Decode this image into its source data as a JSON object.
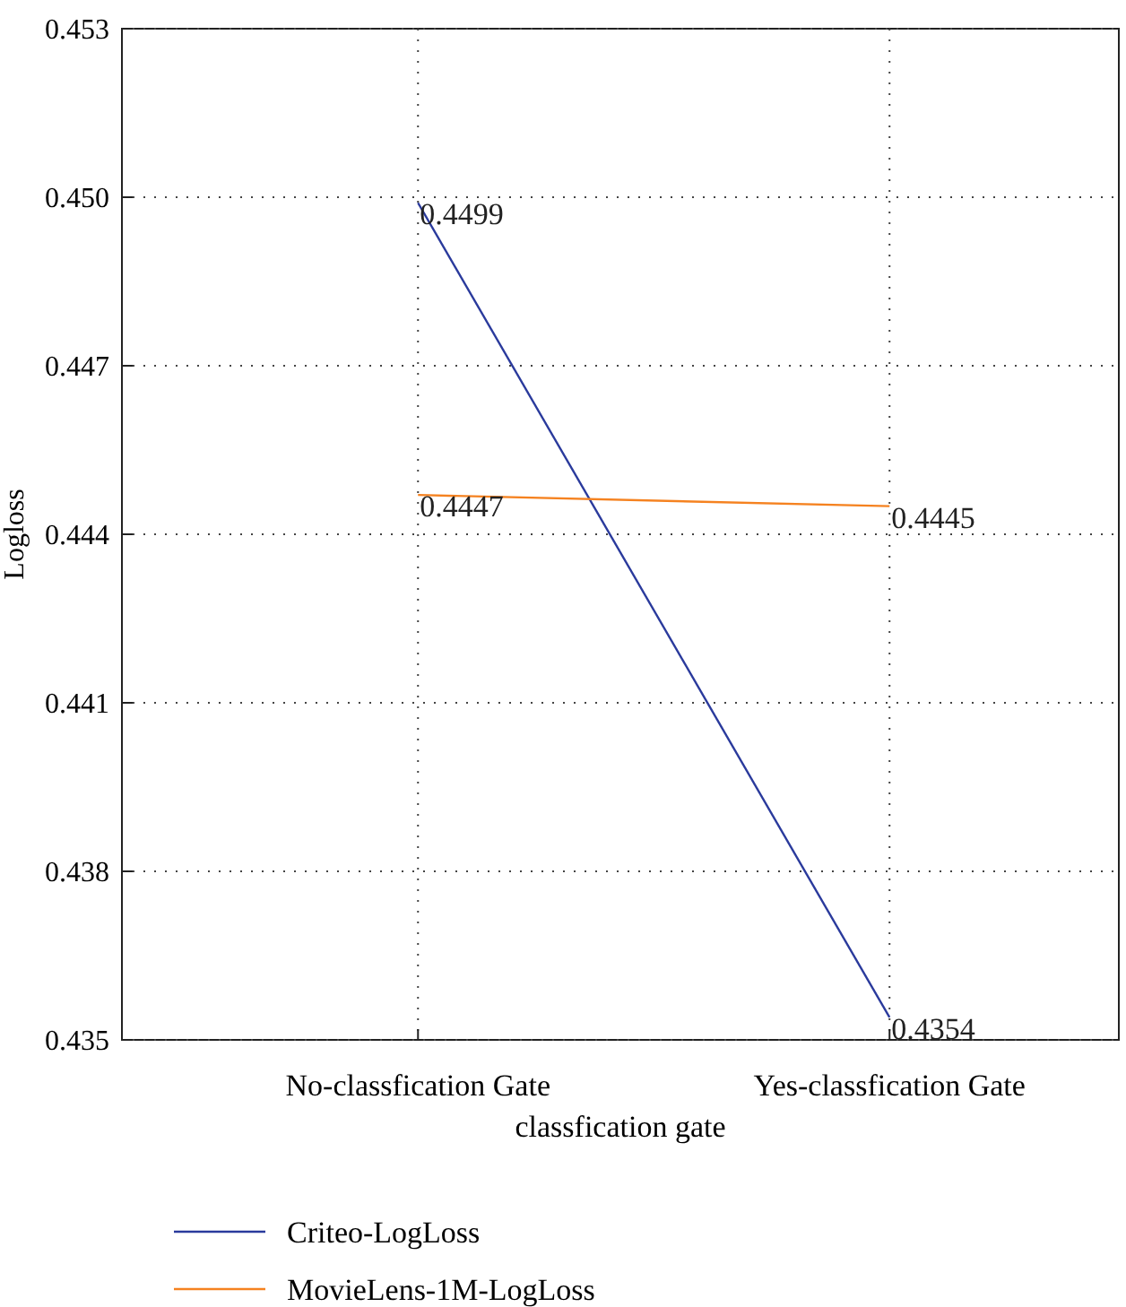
{
  "chart_data": {
    "type": "line",
    "xlabel": "classfication gate",
    "ylabel": "Logloss",
    "categories": [
      "No-classfication Gate",
      "Yes-classfication Gate"
    ],
    "series": [
      {
        "name": "Criteo-LogLoss",
        "color": "#2a3a9c",
        "values": [
          0.4499,
          0.4354
        ]
      },
      {
        "name": "MovieLens-1M-LogLoss",
        "color": "#f58220",
        "values": [
          0.4447,
          0.4445
        ]
      }
    ],
    "ylim": [
      0.435,
      0.453
    ],
    "yticks": [
      {
        "value": 0.435,
        "label": "0.435"
      },
      {
        "value": 0.438,
        "label": "0.438"
      },
      {
        "value": 0.441,
        "label": "0.441"
      },
      {
        "value": 0.444,
        "label": "0.444"
      },
      {
        "value": 0.447,
        "label": "0.447"
      },
      {
        "value": 0.45,
        "label": "0.450"
      },
      {
        "value": 0.453,
        "label": "0.453"
      }
    ],
    "grid": true,
    "data_labels": true,
    "legend": "bottom left",
    "marker": "none",
    "line_style": "solid"
  }
}
